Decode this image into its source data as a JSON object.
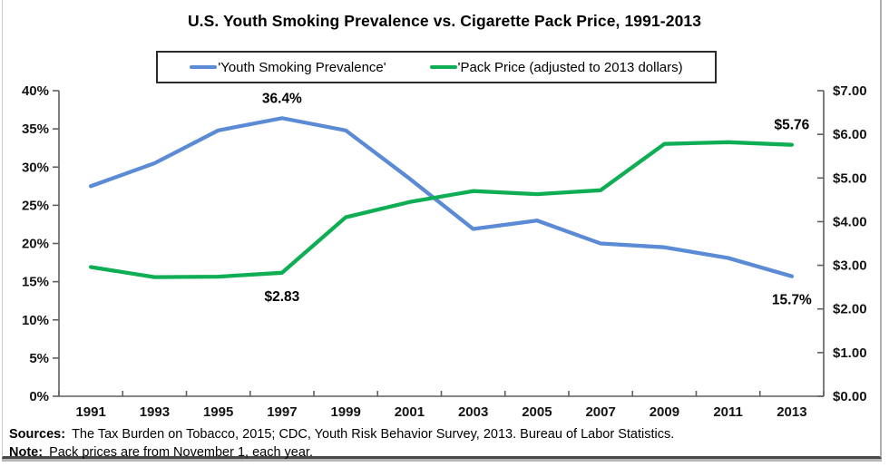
{
  "title": "U.S. Youth Smoking Prevalence vs. Cigarette Pack Price, 1991-2013",
  "chart_data": {
    "type": "line",
    "title": "U.S. Youth Smoking Prevalence vs. Cigarette Pack Price, 1991-2013",
    "grid": false,
    "legend_position": "top",
    "categories": [
      "1991",
      "1993",
      "1995",
      "1997",
      "1999",
      "2001",
      "2003",
      "2005",
      "2007",
      "2009",
      "2011",
      "2013"
    ],
    "series": [
      {
        "name": "'Youth Smoking Prevalence'",
        "axis": "left",
        "unit": "%",
        "color": "#5B8BD5",
        "values": [
          27.5,
          30.5,
          34.8,
          36.4,
          34.8,
          28.5,
          21.9,
          23.0,
          20.0,
          19.5,
          18.1,
          15.7
        ]
      },
      {
        "name": "'Pack Price (adjusted to 2013 dollars)",
        "axis": "right",
        "unit": "$",
        "color": "#0FAE54",
        "values": [
          2.96,
          2.73,
          2.74,
          2.83,
          4.1,
          4.45,
          4.7,
          4.63,
          4.72,
          5.78,
          5.82,
          5.76
        ]
      }
    ],
    "left_axis": {
      "min": 0,
      "max": 40,
      "tick_labels": [
        "0%",
        "5%",
        "10%",
        "15%",
        "20%",
        "25%",
        "30%",
        "35%",
        "40%"
      ]
    },
    "right_axis": {
      "min": 0,
      "max": 7,
      "tick_labels": [
        "$0.00",
        "$1.00",
        "$2.00",
        "$3.00",
        "$4.00",
        "$5.00",
        "$6.00",
        "$7.00"
      ]
    },
    "annotations": [
      {
        "text": "36.4%",
        "series": 0,
        "index": 3,
        "placement": "above"
      },
      {
        "text": "$2.83",
        "series": 1,
        "index": 3,
        "placement": "below"
      },
      {
        "text": "$5.76",
        "series": 1,
        "index": 11,
        "placement": "above"
      },
      {
        "text": "15.7%",
        "series": 0,
        "index": 11,
        "placement": "below"
      }
    ]
  },
  "footer": {
    "sources_label": "Sources:",
    "sources_text": "The Tax Burden on Tobacco, 2015; CDC, Youth Risk Behavior Survey, 2013. Bureau of Labor Statistics.",
    "note_label": "Note:",
    "note_text": "Pack prices are from November 1, each year."
  }
}
